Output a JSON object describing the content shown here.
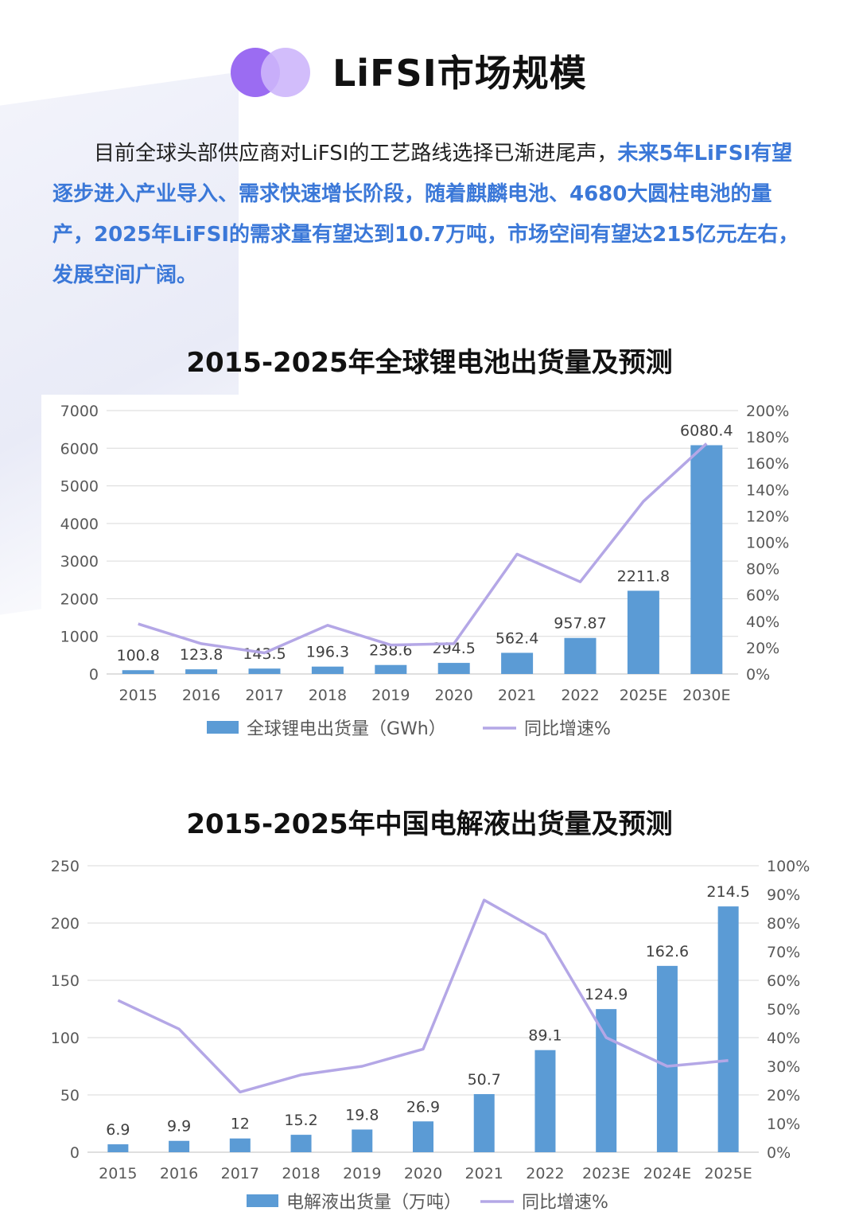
{
  "header": {
    "title": "LiFSI市场规模"
  },
  "intro": {
    "plain": "目前全球头部供应商对LiFSI的工艺路线选择已渐进尾声，",
    "highlight": "未来5年LiFSI有望逐步进入产业导入、需求快速增长阶段，随着麒麟电池、4680大圆柱电池的量产，2025年LiFSI的需求量有望达到10.7万吨，市场空间有望达215亿元左右，发展空间广阔。"
  },
  "colors": {
    "bar": "#5b9bd5",
    "line": "#b4a7e6",
    "accent_purple": "#9b6cf2",
    "highlight_text": "#3b78d8"
  },
  "chart_data": [
    {
      "type": "bar",
      "title": "2015-2025年全球锂电池出货量及预测",
      "categories": [
        "2015",
        "2016",
        "2017",
        "2018",
        "2019",
        "2020",
        "2021",
        "2022",
        "2025E",
        "2030E"
      ],
      "series": [
        {
          "name": "全球锂电出货量（GWh）",
          "type": "bar",
          "axis": "left",
          "values": [
            100.8,
            123.8,
            143.5,
            196.3,
            238.6,
            294.5,
            562.4,
            957.87,
            2211.8,
            6080.4
          ],
          "labels": [
            "100.8",
            "123.8",
            "143.5",
            "196.3",
            "238.6",
            "294.5",
            "562.4",
            "957.87",
            "2211.8",
            "6080.4"
          ]
        },
        {
          "name": "同比增速%",
          "type": "line",
          "axis": "right",
          "values": [
            38,
            23,
            16,
            37,
            22,
            23,
            91,
            70,
            131,
            175
          ]
        }
      ],
      "ylim": [
        0,
        7000
      ],
      "y_ticks": [
        "0",
        "1000",
        "2000",
        "3000",
        "4000",
        "5000",
        "6000",
        "7000"
      ],
      "y2lim": [
        0,
        200
      ],
      "y2_ticks": [
        "0%",
        "20%",
        "40%",
        "60%",
        "80%",
        "100%",
        "120%",
        "140%",
        "160%",
        "180%",
        "200%"
      ],
      "grid": true,
      "legend": "bottom"
    },
    {
      "type": "bar",
      "title": "2015-2025年中国电解液出货量及预测",
      "categories": [
        "2015",
        "2016",
        "2017",
        "2018",
        "2019",
        "2020",
        "2021",
        "2022",
        "2023E",
        "2024E",
        "2025E"
      ],
      "series": [
        {
          "name": "电解液出货量（万吨）",
          "type": "bar",
          "axis": "left",
          "values": [
            6.9,
            9.9,
            12,
            15.2,
            19.8,
            26.9,
            50.7,
            89.1,
            124.9,
            162.6,
            214.5
          ],
          "labels": [
            "6.9",
            "9.9",
            "12",
            "15.2",
            "19.8",
            "26.9",
            "50.7",
            "89.1",
            "124.9",
            "162.6",
            "214.5"
          ]
        },
        {
          "name": "同比增速%",
          "type": "line",
          "axis": "right",
          "values": [
            53,
            43,
            21,
            27,
            30,
            36,
            88,
            76,
            40,
            30,
            32
          ]
        }
      ],
      "ylim": [
        0,
        250
      ],
      "y_ticks": [
        "0",
        "50",
        "100",
        "150",
        "200",
        "250"
      ],
      "y2lim": [
        0,
        100
      ],
      "y2_ticks": [
        "0%",
        "10%",
        "20%",
        "30%",
        "40%",
        "50%",
        "60%",
        "70%",
        "80%",
        "90%",
        "100%"
      ],
      "grid": true,
      "legend": "bottom"
    }
  ]
}
